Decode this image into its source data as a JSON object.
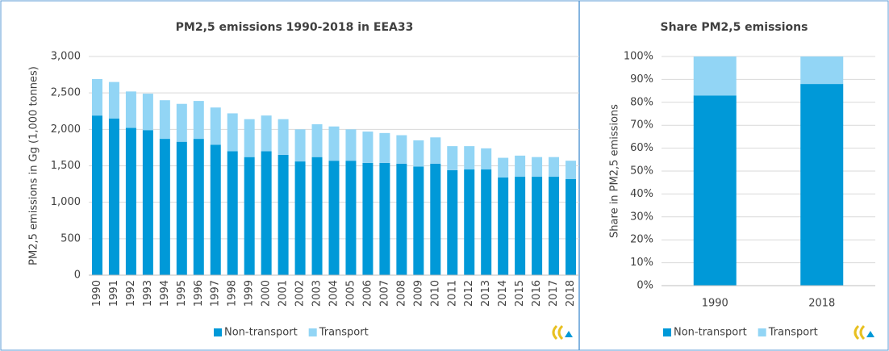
{
  "chart_data": [
    {
      "type": "bar",
      "stacked": true,
      "title": "PM2,5 emissions 1990-2018 in EEA33",
      "y_label": "PM2,5 emissions in Gg (1,000 tonnes)",
      "categories": [
        "1990",
        "1991",
        "1992",
        "1993",
        "1994",
        "1995",
        "1996",
        "1997",
        "1998",
        "1999",
        "2000",
        "2001",
        "2002",
        "2003",
        "2004",
        "2005",
        "2006",
        "2007",
        "2008",
        "2009",
        "2010",
        "2011",
        "2012",
        "2013",
        "2014",
        "2015",
        "2016",
        "2017",
        "2018"
      ],
      "series": [
        {
          "name": "Non-transport",
          "color": "#0099d8",
          "values": [
            2190,
            2150,
            2020,
            1990,
            1870,
            1830,
            1870,
            1790,
            1700,
            1620,
            1700,
            1650,
            1560,
            1620,
            1570,
            1570,
            1540,
            1540,
            1530,
            1490,
            1530,
            1440,
            1450,
            1450,
            1340,
            1350,
            1350,
            1350,
            1320
          ]
        },
        {
          "name": "Transport",
          "color": "#92d5f5",
          "values": [
            500,
            500,
            500,
            500,
            530,
            520,
            520,
            510,
            520,
            520,
            490,
            490,
            440,
            450,
            470,
            430,
            430,
            410,
            390,
            360,
            360,
            330,
            320,
            290,
            270,
            290,
            270,
            270,
            250
          ]
        }
      ],
      "ylim": [
        0,
        3000
      ],
      "yticks": [
        0,
        500,
        {
          "value": 1000,
          "label": "1,000"
        },
        {
          "value": 1500,
          "label": "1,500"
        },
        {
          "value": 2000,
          "label": "2,000"
        },
        {
          "value": 2500,
          "label": "2,500"
        },
        {
          "value": 3000,
          "label": "3,000"
        }
      ],
      "grid": true,
      "legend": "bottom"
    },
    {
      "type": "bar",
      "stacked": true,
      "title": "Share PM2,5 emissions",
      "y_label": "Share in PM2,5 emissions",
      "categories": [
        "1990",
        "2018"
      ],
      "series": [
        {
          "name": "Non-transport",
          "color": "#0099d8",
          "values": [
            83,
            88
          ]
        },
        {
          "name": "Transport",
          "color": "#92d5f5",
          "values": [
            17,
            12
          ]
        }
      ],
      "ylim": [
        0,
        100
      ],
      "yticks": [
        {
          "value": 0,
          "label": "0%"
        },
        {
          "value": 10,
          "label": "10%"
        },
        {
          "value": 20,
          "label": "20%"
        },
        {
          "value": 30,
          "label": "30%"
        },
        {
          "value": 40,
          "label": "40%"
        },
        {
          "value": 50,
          "label": "50%"
        },
        {
          "value": 60,
          "label": "60%"
        },
        {
          "value": 70,
          "label": "70%"
        },
        {
          "value": 80,
          "label": "80%"
        },
        {
          "value": 90,
          "label": "90%"
        },
        {
          "value": 100,
          "label": "100%"
        }
      ],
      "grid": true,
      "legend": "bottom"
    }
  ]
}
